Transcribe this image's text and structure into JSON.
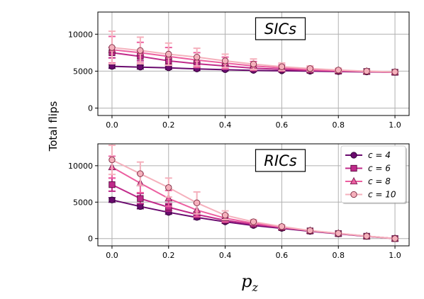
{
  "ylabel": "Total flips",
  "xlabel_symbol": "p",
  "xlabel_sub": "z",
  "legend": {
    "placement": "upper-right",
    "items": [
      "c = 4",
      "c = 6",
      "c = 8",
      "c = 10"
    ]
  },
  "colors": {
    "c4": "#6a0a6e",
    "c6": "#c02a8a",
    "c8": "#ec5fa0",
    "c10": "#f5b0bc",
    "grid": "#b0b0b0"
  },
  "chart_data": [
    {
      "type": "line",
      "label": "SICs",
      "xlabel": "p_z",
      "ylabel": "Total flips",
      "xlim": [
        -0.05,
        1.05
      ],
      "ylim": [
        -1000,
        13000
      ],
      "xticks": [
        "0.0",
        "0.2",
        "0.4",
        "0.6",
        "0.8",
        "1.0"
      ],
      "yticks": [
        "0",
        "5000",
        "10000"
      ],
      "grid": true,
      "x": [
        0.0,
        0.1,
        0.2,
        0.3,
        0.4,
        0.5,
        0.6,
        0.7,
        0.8,
        0.9,
        1.0
      ],
      "series": [
        {
          "name": "c = 4",
          "marker": "circle",
          "values": [
            5650,
            5550,
            5450,
            5300,
            5200,
            5100,
            5050,
            5000,
            4950,
            4900,
            4850
          ],
          "err": [
            250,
            250,
            200,
            200,
            150,
            150,
            150,
            120,
            100,
            100,
            80
          ]
        },
        {
          "name": "c = 6",
          "marker": "square",
          "values": [
            7500,
            7000,
            6400,
            6000,
            5700,
            5400,
            5250,
            5100,
            5000,
            4950,
            4850
          ],
          "err": [
            700,
            600,
            500,
            400,
            350,
            300,
            250,
            200,
            150,
            120,
            80
          ]
        },
        {
          "name": "c = 8",
          "marker": "triangle",
          "values": [
            7900,
            7500,
            7000,
            6500,
            6100,
            5700,
            5450,
            5200,
            5050,
            4950,
            4850
          ],
          "err": [
            1800,
            1400,
            1200,
            1000,
            800,
            600,
            400,
            300,
            200,
            150,
            100
          ]
        },
        {
          "name": "c = 10",
          "marker": "circle",
          "values": [
            8200,
            7800,
            7300,
            6900,
            6400,
            5950,
            5600,
            5350,
            5150,
            5000,
            4900
          ],
          "err": [
            2200,
            1800,
            1500,
            1200,
            900,
            700,
            500,
            350,
            250,
            150,
            100
          ]
        }
      ]
    },
    {
      "type": "line",
      "label": "RICs",
      "xlabel": "p_z",
      "ylabel": "Total flips",
      "xlim": [
        -0.05,
        1.05
      ],
      "ylim": [
        -1000,
        13000
      ],
      "xticks": [
        "0.0",
        "0.2",
        "0.4",
        "0.6",
        "0.8",
        "1.0"
      ],
      "yticks": [
        "0",
        "5000",
        "10000"
      ],
      "grid": true,
      "x": [
        0.0,
        0.1,
        0.2,
        0.3,
        0.4,
        0.5,
        0.6,
        0.7,
        0.8,
        0.9,
        1.0
      ],
      "series": [
        {
          "name": "c = 4",
          "marker": "circle",
          "values": [
            5300,
            4400,
            3600,
            2900,
            2300,
            1800,
            1400,
            1000,
            650,
            300,
            0
          ],
          "err": [
            300,
            300,
            250,
            250,
            200,
            150,
            150,
            100,
            80,
            50,
            30
          ]
        },
        {
          "name": "c = 6",
          "marker": "square",
          "values": [
            7400,
            5500,
            4300,
            3300,
            2500,
            1950,
            1500,
            1050,
            680,
            320,
            0
          ],
          "err": [
            900,
            700,
            500,
            400,
            300,
            200,
            150,
            100,
            80,
            50,
            30
          ]
        },
        {
          "name": "c = 8",
          "marker": "triangle",
          "values": [
            9800,
            7600,
            5500,
            3900,
            2800,
            2100,
            1550,
            1080,
            700,
            330,
            0
          ],
          "err": [
            1500,
            1300,
            1100,
            900,
            500,
            300,
            200,
            150,
            80,
            50,
            30
          ]
        },
        {
          "name": "c = 10",
          "marker": "circle",
          "values": [
            10800,
            8900,
            7000,
            4900,
            3200,
            2300,
            1650,
            1100,
            720,
            340,
            0
          ],
          "err": [
            2000,
            1600,
            1300,
            1500,
            600,
            300,
            200,
            150,
            100,
            50,
            30
          ]
        }
      ]
    }
  ]
}
